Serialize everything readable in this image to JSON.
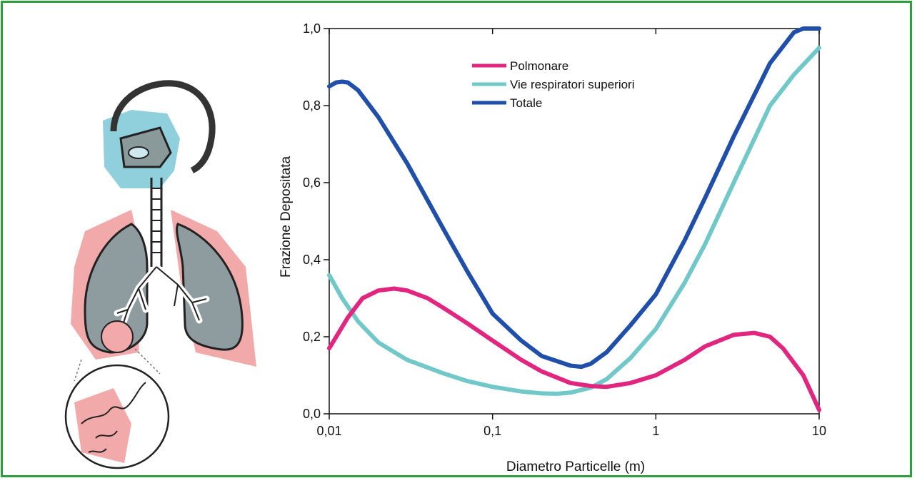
{
  "chart_data": {
    "type": "line",
    "title": "",
    "xlabel": "Diametro Particelle (m)",
    "ylabel": "Frazione Depositata",
    "x_scale": "log",
    "xlim": [
      0.01,
      10
    ],
    "ylim": [
      0,
      1.0
    ],
    "xticks": [
      {
        "value": 0.01,
        "label": "0,01"
      },
      {
        "value": 0.1,
        "label": "0,1"
      },
      {
        "value": 1,
        "label": "1"
      },
      {
        "value": 10,
        "label": "10"
      }
    ],
    "yticks": [
      {
        "value": 0.0,
        "label": "0,0"
      },
      {
        "value": 0.2,
        "label": "0,2"
      },
      {
        "value": 0.4,
        "label": "0,4"
      },
      {
        "value": 0.6,
        "label": "0,6"
      },
      {
        "value": 0.8,
        "label": "0,8"
      },
      {
        "value": 1.0,
        "label": "1,0"
      }
    ],
    "grid": false,
    "legend_position": "top-center",
    "series": [
      {
        "name": "Polmonare",
        "color": "#e0267f",
        "x": [
          0.01,
          0.013,
          0.016,
          0.02,
          0.025,
          0.03,
          0.04,
          0.05,
          0.07,
          0.1,
          0.15,
          0.2,
          0.3,
          0.4,
          0.5,
          0.7,
          1,
          1.5,
          2,
          3,
          4,
          5,
          6,
          8,
          10
        ],
        "y": [
          0.17,
          0.25,
          0.3,
          0.32,
          0.325,
          0.32,
          0.3,
          0.275,
          0.235,
          0.19,
          0.14,
          0.11,
          0.08,
          0.072,
          0.07,
          0.08,
          0.1,
          0.14,
          0.175,
          0.205,
          0.21,
          0.2,
          0.17,
          0.1,
          0.01
        ]
      },
      {
        "name": "Vie respiratori superiori",
        "color": "#72c8c8",
        "x": [
          0.01,
          0.012,
          0.015,
          0.02,
          0.03,
          0.05,
          0.07,
          0.1,
          0.15,
          0.2,
          0.25,
          0.3,
          0.4,
          0.5,
          0.7,
          1,
          1.5,
          2,
          3,
          5,
          7,
          10
        ],
        "y": [
          0.36,
          0.3,
          0.24,
          0.185,
          0.14,
          0.105,
          0.085,
          0.07,
          0.058,
          0.053,
          0.052,
          0.055,
          0.068,
          0.09,
          0.145,
          0.22,
          0.34,
          0.44,
          0.6,
          0.8,
          0.88,
          0.95
        ]
      },
      {
        "name": "Totale",
        "color": "#1f4fa8",
        "x": [
          0.01,
          0.011,
          0.012,
          0.013,
          0.015,
          0.02,
          0.03,
          0.05,
          0.07,
          0.1,
          0.15,
          0.2,
          0.3,
          0.35,
          0.4,
          0.5,
          0.7,
          1,
          1.5,
          2,
          3,
          5,
          7,
          8,
          10
        ],
        "y": [
          0.85,
          0.86,
          0.862,
          0.86,
          0.84,
          0.77,
          0.65,
          0.48,
          0.37,
          0.26,
          0.19,
          0.15,
          0.125,
          0.122,
          0.13,
          0.16,
          0.23,
          0.31,
          0.45,
          0.56,
          0.72,
          0.91,
          0.99,
          1.0,
          1.0
        ]
      }
    ]
  }
}
